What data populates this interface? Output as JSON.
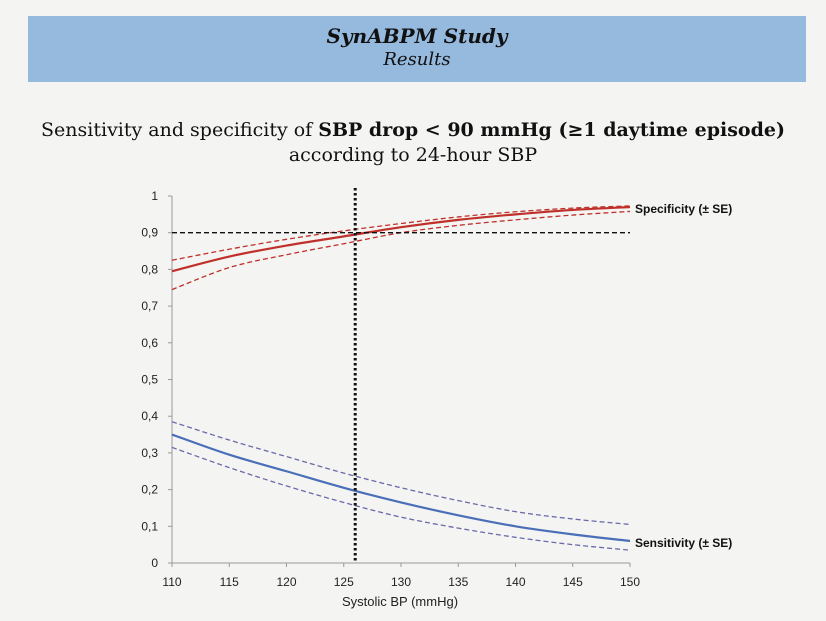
{
  "banner": {
    "title": "SynABPM Study",
    "subtitle": "Results"
  },
  "heading": {
    "line1_pre": "Sensitivity and specificity of ",
    "line1_bold": "SBP drop < 90 mmHg (≥1 daytime episode)",
    "line2": "according to 24-hour SBP"
  },
  "chart_data": {
    "type": "line",
    "title": "Sensitivity and specificity of SBP drop < 90 mmHg (≥1 daytime episode) according to 24-hour SBP",
    "xlabel": "Systolic BP (mmHg)",
    "ylabel": "",
    "xlim": [
      110,
      150
    ],
    "ylim": [
      0,
      1
    ],
    "x_ticks": [
      110,
      115,
      120,
      125,
      130,
      135,
      140,
      145,
      150
    ],
    "y_ticks": [
      "0",
      "0,1",
      "0,2",
      "0,3",
      "0,4",
      "0,5",
      "0,6",
      "0,7",
      "0,8",
      "0,9",
      "1"
    ],
    "x": [
      110,
      115,
      120,
      125,
      130,
      135,
      140,
      145,
      150
    ],
    "series": [
      {
        "name": "Specificity (± SE)",
        "color": "#c0302a",
        "style": "solid",
        "values": [
          0.795,
          0.835,
          0.865,
          0.89,
          0.915,
          0.935,
          0.95,
          0.962,
          0.97
        ]
      },
      {
        "name": "Specificity upper SE",
        "color": "#c0302a",
        "style": "dashed",
        "values": [
          0.825,
          0.855,
          0.882,
          0.905,
          0.925,
          0.943,
          0.957,
          0.967,
          0.973
        ]
      },
      {
        "name": "Specificity lower SE",
        "color": "#c0302a",
        "style": "dashed",
        "values": [
          0.745,
          0.805,
          0.84,
          0.87,
          0.9,
          0.92,
          0.935,
          0.948,
          0.958
        ]
      },
      {
        "name": "Sensitivity (± SE)",
        "color": "#4a6fb8",
        "style": "solid",
        "values": [
          0.35,
          0.295,
          0.25,
          0.205,
          0.165,
          0.13,
          0.1,
          0.078,
          0.06
        ]
      },
      {
        "name": "Sensitivity upper SE",
        "color": "#6a6aaa",
        "style": "dashed",
        "values": [
          0.385,
          0.335,
          0.29,
          0.245,
          0.205,
          0.17,
          0.14,
          0.12,
          0.105
        ]
      },
      {
        "name": "Sensitivity lower SE",
        "color": "#6a6aaa",
        "style": "dashed",
        "values": [
          0.315,
          0.26,
          0.21,
          0.165,
          0.125,
          0.095,
          0.07,
          0.05,
          0.035
        ]
      }
    ],
    "reference_lines": [
      {
        "orientation": "horizontal",
        "value": 0.9,
        "style": "dashed",
        "color": "#111111"
      },
      {
        "orientation": "vertical",
        "value": 126,
        "style": "dotted",
        "color": "#111111"
      }
    ],
    "annotations": [
      {
        "text": "Specificity (± SE)",
        "series": "Specificity (± SE)"
      },
      {
        "text": "Sensitivity (± SE)",
        "series": "Sensitivity (± SE)"
      }
    ]
  }
}
